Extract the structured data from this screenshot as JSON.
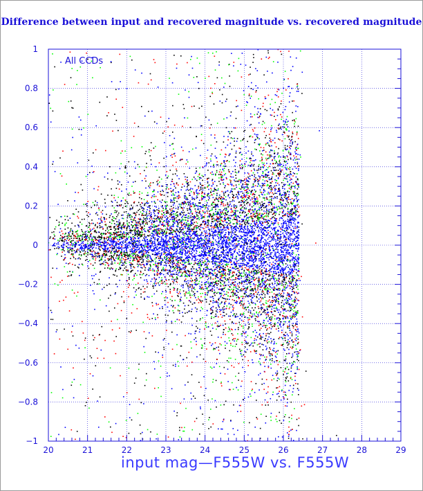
{
  "chart_data": {
    "type": "scatter",
    "title": "Difference between input and recovered magnitude vs. recovered magnitude",
    "xlabel": "input mag—F555W vs. F555W",
    "ylabel": "",
    "annotation": "All CCDs",
    "xlim": [
      20,
      29
    ],
    "ylim": [
      -1,
      1
    ],
    "x_ticks": [
      20,
      21,
      22,
      23,
      24,
      25,
      26,
      27,
      28,
      29
    ],
    "y_ticks": [
      -1,
      -0.8,
      -0.6,
      -0.4,
      -0.2,
      0,
      0.2,
      0.4,
      0.6,
      0.8,
      1
    ],
    "grid": true,
    "point_colors": [
      "#000000",
      "#ff0000",
      "#00ff00",
      "#0000ff"
    ],
    "distribution": {
      "x_range": [
        20.0,
        26.4
      ],
      "center_y": 0.0,
      "spread_at_x20": 0.03,
      "spread_at_x26": 0.35,
      "faint_outliers_x_max": 27.4
    },
    "axis_color": "#1a10d8",
    "grid_color": "#1a10d8"
  }
}
